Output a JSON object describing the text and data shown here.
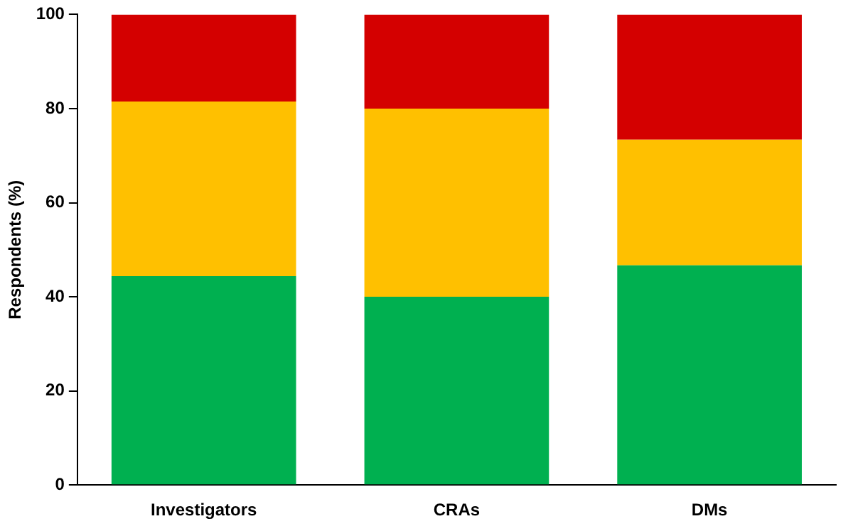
{
  "chart_data": {
    "type": "bar",
    "stacked": true,
    "ylabel": "Respondents (%)",
    "categories": [
      "Investigators",
      "CRAs",
      "DMs"
    ],
    "series": [
      {
        "color": "#00b050",
        "values": [
          44.4,
          40,
          46.7
        ]
      },
      {
        "color": "#ffc000",
        "values": [
          37.1,
          40,
          26.7
        ]
      },
      {
        "color": "#d40000",
        "values": [
          18.5,
          20,
          26.6
        ]
      }
    ],
    "ylim": [
      0,
      100
    ],
    "yticks": [
      0,
      20,
      40,
      60,
      80,
      100
    ],
    "grid": false,
    "legend": false
  }
}
